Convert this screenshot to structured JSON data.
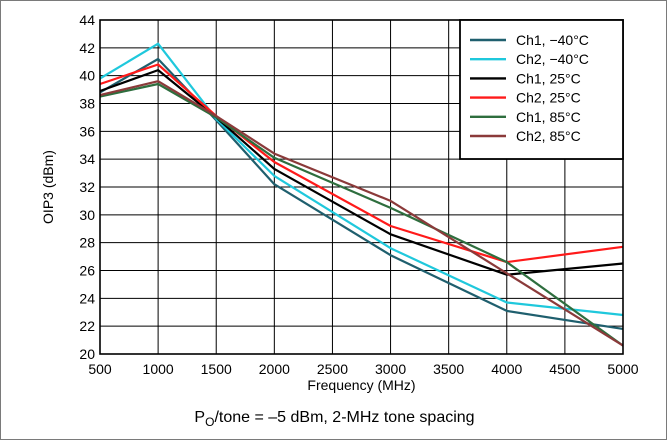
{
  "chart_data": {
    "type": "line",
    "xlabel": "Frequency (MHz)",
    "ylabel": "OIP3 (dBm)",
    "xlim": [
      500,
      5000
    ],
    "ylim": [
      20,
      44
    ],
    "x_ticks": [
      500,
      1000,
      1500,
      2000,
      2500,
      3000,
      3500,
      4000,
      4500,
      5000
    ],
    "y_ticks": [
      20,
      22,
      24,
      26,
      28,
      30,
      32,
      34,
      36,
      38,
      40,
      42,
      44
    ],
    "grid": true,
    "legend_position": "top-right",
    "x": [
      500,
      1000,
      1500,
      2000,
      3000,
      4000,
      5000
    ],
    "series": [
      {
        "name": "Ch1, −40°C",
        "color": "#1f5f6e",
        "values": [
          38.8,
          41.2,
          36.8,
          32.2,
          27.1,
          23.1,
          21.8
        ]
      },
      {
        "name": "Ch2, −40°C",
        "color": "#1fc8dc",
        "values": [
          39.8,
          42.3,
          36.9,
          32.8,
          27.6,
          23.7,
          22.8
        ]
      },
      {
        "name": "Ch1, 25°C",
        "color": "#000000",
        "values": [
          38.9,
          40.4,
          37.0,
          33.3,
          28.6,
          25.7,
          26.5
        ]
      },
      {
        "name": "Ch2, 25°C",
        "color": "#ff1a1a",
        "values": [
          39.4,
          40.8,
          37.1,
          33.8,
          29.2,
          26.6,
          27.7
        ]
      },
      {
        "name": "Ch1, 85°C",
        "color": "#2e6e3e",
        "values": [
          38.5,
          39.4,
          37.0,
          34.1,
          30.5,
          26.6,
          20.6
        ]
      },
      {
        "name": "Ch2, 85°C",
        "color": "#8b3a3a",
        "values": [
          38.6,
          39.6,
          37.1,
          34.4,
          31.0,
          25.8,
          20.6
        ]
      }
    ]
  },
  "footnote": {
    "p": "P",
    "sub": "O",
    "rest": "/tone = –5 dBm, 2-MHz tone spacing"
  }
}
